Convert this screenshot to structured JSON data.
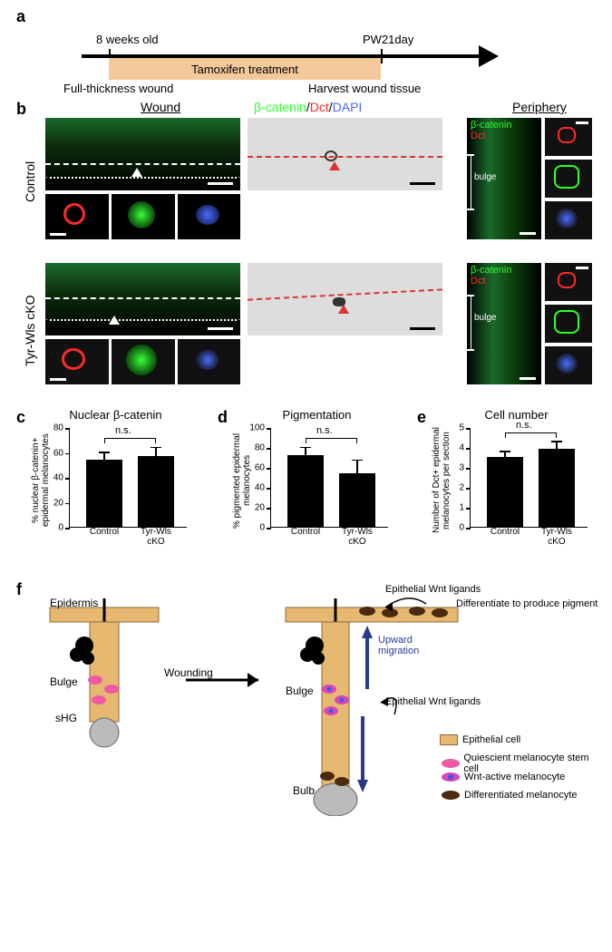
{
  "labels": {
    "a": "a",
    "b": "b",
    "c": "c",
    "d": "d",
    "e": "e",
    "f": "f"
  },
  "panel_a": {
    "top_left": "8 weeks old",
    "top_right": "PW21day",
    "box": "Tamoxifen treatment",
    "bottom_left": "Full-thickness wound",
    "bottom_right": "Harvest wound tissue"
  },
  "panel_b": {
    "headers": {
      "wound": "Wound",
      "periphery": "Periphery"
    },
    "stain": {
      "bcat": "β-catenin",
      "dct": "Dct",
      "dapi": "DAPI",
      "sep": "/"
    },
    "rows": {
      "control": "Control",
      "cko": "Tyr-Wls cKO"
    },
    "bulge": "bulge",
    "stain_colors": {
      "bcat": "#2aff2a",
      "dct": "#ff2a2a",
      "dapi": "#4a6aff"
    }
  },
  "charts": {
    "ns": "n.s.",
    "c": {
      "title": "Nuclear β-catenin",
      "ylab": "% nuclear β-catenin+\nepidermal melanocytes",
      "ymax": 80,
      "ystep": 20,
      "bars": [
        {
          "label": "Control",
          "value": 54,
          "err": 5
        },
        {
          "label": "Tyr-Wls cKO",
          "value": 57,
          "err": 6
        }
      ]
    },
    "d": {
      "title": "Pigmentation",
      "ylab": "% pigmented epidermal\nmelanocytes",
      "ymax": 100,
      "ystep": 20,
      "bars": [
        {
          "label": "Control",
          "value": 72,
          "err": 7
        },
        {
          "label": "Tyr-Wls cKO",
          "value": 54,
          "err": 12
        }
      ]
    },
    "e": {
      "title": "Cell number",
      "ylab": "Number of Dct+ epidermal\nmelanocytes per section",
      "ymax": 5,
      "ystep": 1,
      "bars": [
        {
          "label": "Control",
          "value": 3.5,
          "err": 0.25
        },
        {
          "label": "Tyr-Wls cKO",
          "value": 3.9,
          "err": 0.35
        }
      ]
    }
  },
  "panel_f": {
    "wounding": "Wounding",
    "epi_wnt": "Epithelial Wnt ligands",
    "diff_pig": "Differentiate to produce pigment",
    "upward": "Upward\nmigration",
    "epidermis": "Epidermis",
    "bulge": "Bulge",
    "shg": "sHG",
    "bulb": "Bulb",
    "legend": {
      "epi": "Epithelial cell",
      "qmsc": "Quiescient melanocyte stem cell",
      "wnt_mc": "Wnt-active melanocyte",
      "diff_mc": "Differentiated melanocyte"
    },
    "colors": {
      "epi": "#e6b870",
      "qmsc": "#ef5aa3",
      "wnt": "#d946b8",
      "wnt_nuc": "#3a5adf",
      "diff": "#4a2a10",
      "arrow": "#2a3a8f"
    }
  }
}
